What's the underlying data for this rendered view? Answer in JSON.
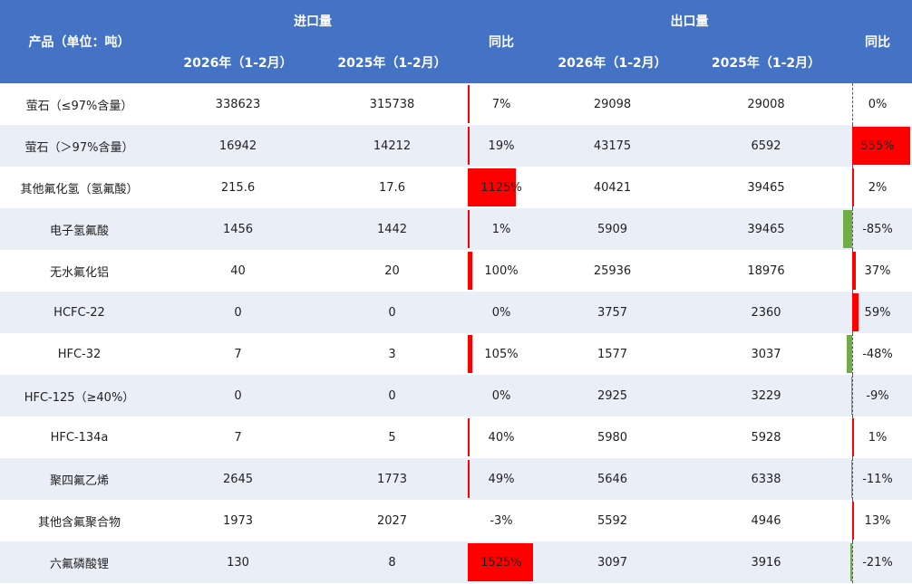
{
  "table": {
    "header": {
      "product": "产品（单位：吨）",
      "import_group": "进口量",
      "export_group": "出口量",
      "yoy": "同比",
      "year_2026": "2026年（1-2月）",
      "year_2025": "2025年（1-2月）"
    }
  },
  "colors": {
    "header_bg": "#4472c4",
    "positive_bar": "#ff0000",
    "negative_bar": "#70ad47",
    "alt_row": "#e9eef7"
  },
  "chart_data": {
    "type": "table",
    "columns": [
      "产品（单位：吨）",
      "进口量 2026年（1-2月）",
      "进口量 2025年（1-2月）",
      "进口量 同比",
      "出口量 2026年（1-2月）",
      "出口量 2025年（1-2月）",
      "出口量 同比"
    ],
    "rows": [
      {
        "name": "萤石（≤97%含量）",
        "imp26": "338623",
        "imp25": "315738",
        "imp_yoy": "7%",
        "imp_yoy_val": 7,
        "exp26": "29098",
        "exp25": "29008",
        "exp_yoy": "0%",
        "exp_yoy_val": 0
      },
      {
        "name": "萤石（＞97%含量）",
        "imp26": "16942",
        "imp25": "14212",
        "imp_yoy": "19%",
        "imp_yoy_val": 19,
        "exp26": "43175",
        "exp25": "6592",
        "exp_yoy": "555%",
        "exp_yoy_val": 555
      },
      {
        "name": "其他氟化氢（氢氟酸）",
        "imp26": "215.6",
        "imp25": "17.6",
        "imp_yoy": "1125%",
        "imp_yoy_val": 1125,
        "exp26": "40421",
        "exp25": "39465",
        "exp_yoy": "2%",
        "exp_yoy_val": 2
      },
      {
        "name": "电子氢氟酸",
        "imp26": "1456",
        "imp25": "1442",
        "imp_yoy": "1%",
        "imp_yoy_val": 1,
        "exp26": "5909",
        "exp25": "39465",
        "exp_yoy": "-85%",
        "exp_yoy_val": -85
      },
      {
        "name": "无水氟化铝",
        "imp26": "40",
        "imp25": "20",
        "imp_yoy": "100%",
        "imp_yoy_val": 100,
        "exp26": "25936",
        "exp25": "18976",
        "exp_yoy": "37%",
        "exp_yoy_val": 37
      },
      {
        "name": "HCFC-22",
        "imp26": "0",
        "imp25": "0",
        "imp_yoy": "0%",
        "imp_yoy_val": 0,
        "exp26": "3757",
        "exp25": "2360",
        "exp_yoy": "59%",
        "exp_yoy_val": 59
      },
      {
        "name": "HFC-32",
        "imp26": "7",
        "imp25": "3",
        "imp_yoy": "105%",
        "imp_yoy_val": 105,
        "exp26": "1577",
        "exp25": "3037",
        "exp_yoy": "-48%",
        "exp_yoy_val": -48
      },
      {
        "name": "HFC-125（≥40%）",
        "imp26": "0",
        "imp25": "0",
        "imp_yoy": "0%",
        "imp_yoy_val": 0,
        "exp26": "2925",
        "exp25": "3229",
        "exp_yoy": "-9%",
        "exp_yoy_val": -9
      },
      {
        "name": "HFC-134a",
        "imp26": "7",
        "imp25": "5",
        "imp_yoy": "40%",
        "imp_yoy_val": 40,
        "exp26": "5980",
        "exp25": "5928",
        "exp_yoy": "1%",
        "exp_yoy_val": 1
      },
      {
        "name": "聚四氟乙烯",
        "imp26": "2645",
        "imp25": "1773",
        "imp_yoy": "49%",
        "imp_yoy_val": 49,
        "exp26": "5646",
        "exp25": "6338",
        "exp_yoy": "-11%",
        "exp_yoy_val": -11
      },
      {
        "name": "其他含氟聚合物",
        "imp26": "1973",
        "imp25": "2027",
        "imp_yoy": "-3%",
        "imp_yoy_val": -3,
        "exp26": "5592",
        "exp25": "4946",
        "exp_yoy": "13%",
        "exp_yoy_val": 13
      },
      {
        "name": "六氟磷酸锂",
        "imp26": "130",
        "imp25": "8",
        "imp_yoy": "1525%",
        "imp_yoy_val": 1525,
        "exp26": "3097",
        "exp25": "3916",
        "exp_yoy": "-21%",
        "exp_yoy_val": -21
      }
    ]
  }
}
